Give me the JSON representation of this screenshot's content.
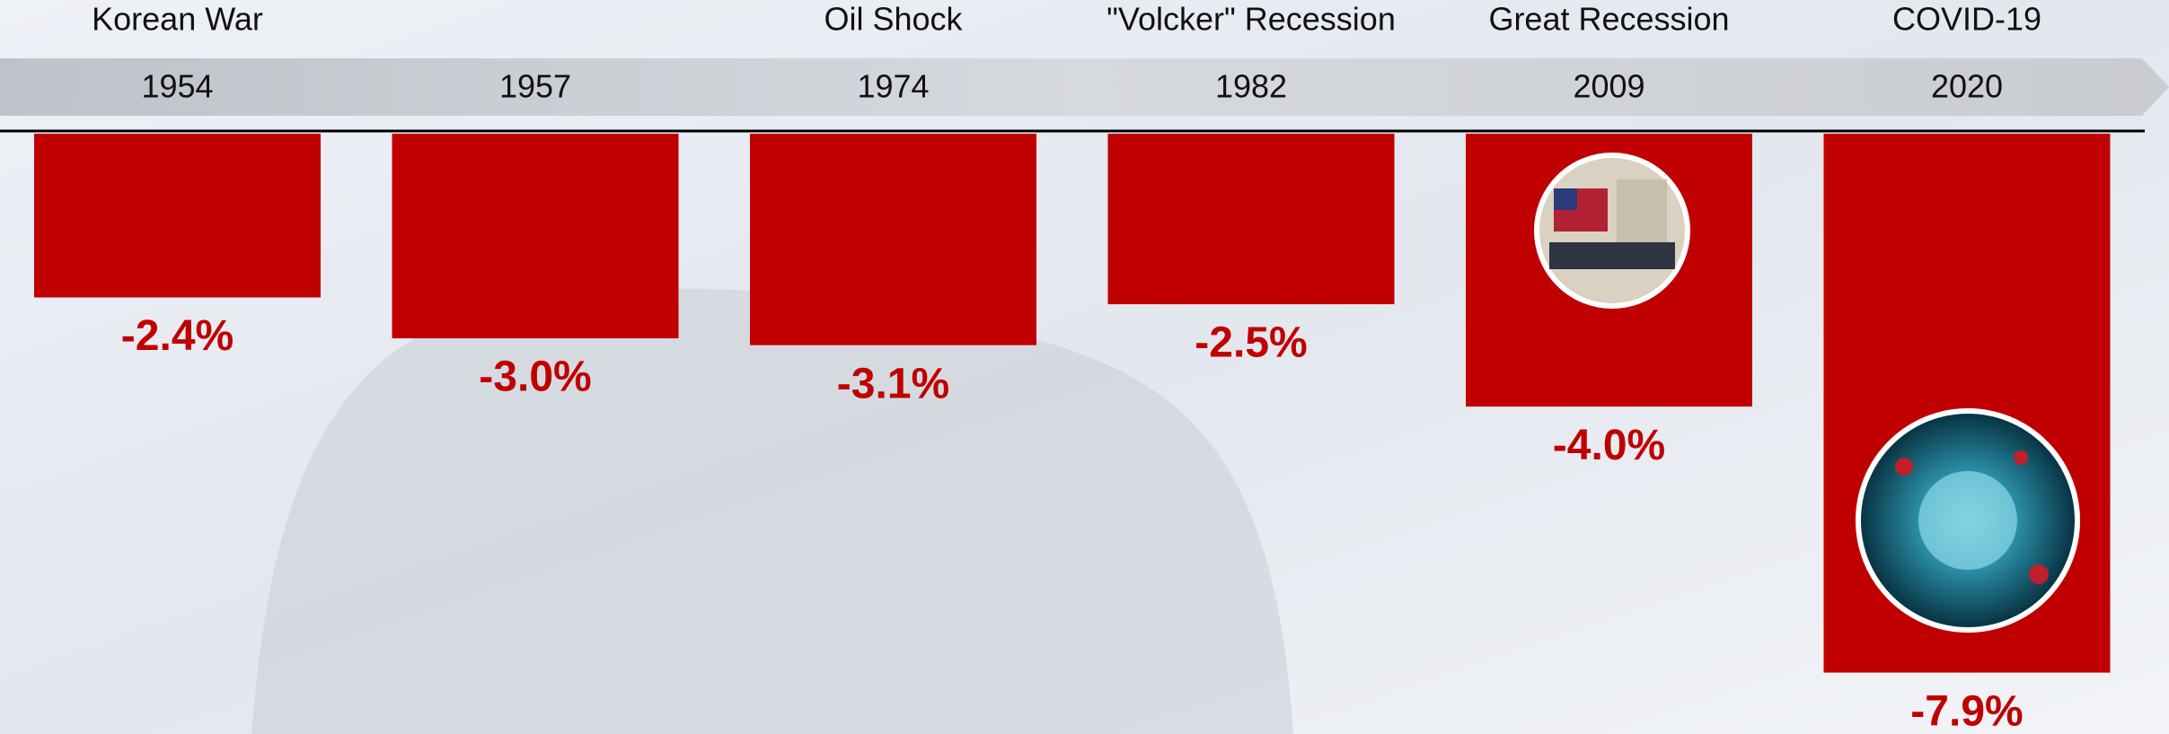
{
  "chart_data": {
    "type": "bar",
    "categories": [
      "1954",
      "1957",
      "1974",
      "1982",
      "2009",
      "2020"
    ],
    "events": [
      "Korean War",
      null,
      "Oil Shock",
      "\"Volcker\" Recession",
      "Great Recession",
      "COVID-19"
    ],
    "values": [
      -2.4,
      -3.0,
      -3.1,
      -2.5,
      -4.0,
      -7.9
    ],
    "value_labels": [
      "-2.4%",
      "-3.0%",
      "-3.1%",
      "-2.5%",
      "-4.0%",
      "-7.9%"
    ],
    "color": "#c00000",
    "ylim": [
      -8.8,
      0
    ]
  }
}
